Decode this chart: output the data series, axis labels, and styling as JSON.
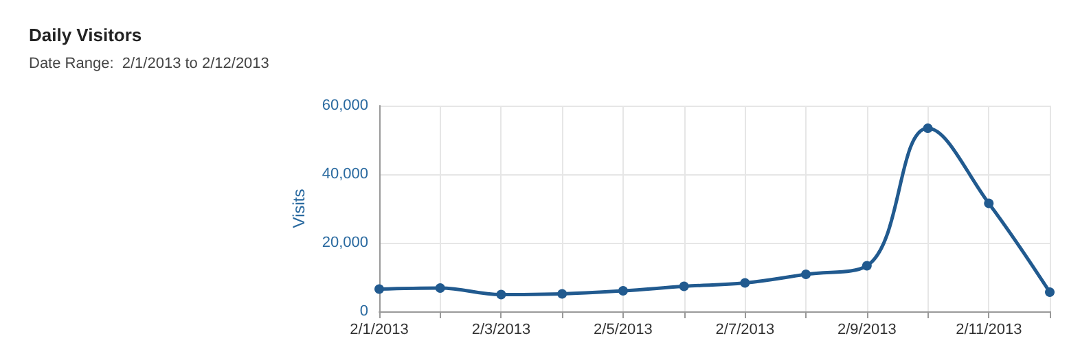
{
  "chart_data": {
    "type": "line",
    "title": "Daily Visitors",
    "subtitle": "Date Range:  2/1/2013 to 2/12/2013",
    "ylabel": "Visits",
    "categories": [
      "2/1/2013",
      null,
      "2/3/2013",
      null,
      "2/5/2013",
      null,
      "2/7/2013",
      null,
      "2/9/2013",
      null,
      "2/11/2013",
      null
    ],
    "series": [
      {
        "color": "#215a8f",
        "values": [
          6500,
          6800,
          4900,
          5100,
          6000,
          7300,
          8300,
          10800,
          13300,
          53400,
          31500,
          5600
        ]
      }
    ],
    "ylim": [
      0,
      60000
    ],
    "yticks": [
      {
        "value": 0,
        "label": "0"
      },
      {
        "value": 20000,
        "label": "20,000"
      },
      {
        "value": 40000,
        "label": "40,000"
      },
      {
        "value": 60000,
        "label": "60,000"
      }
    ],
    "grid": true,
    "marker": "circle",
    "line_style": "solid"
  }
}
